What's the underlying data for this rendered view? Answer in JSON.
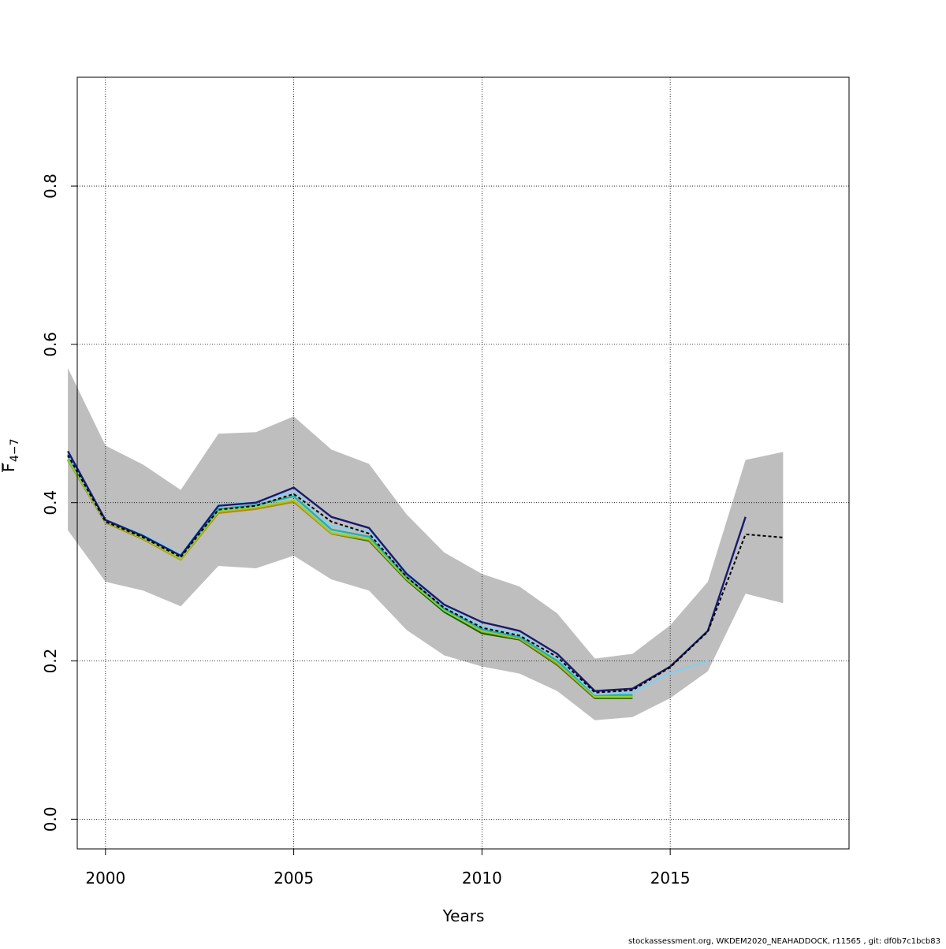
{
  "chart_data": {
    "type": "line",
    "title": "",
    "xlabel": "Years",
    "ylabel_main": "F",
    "ylabel_sub": "4−7",
    "xlim": [
      1999.25,
      2019.75
    ],
    "ylim": [
      -0.0375,
      0.9375
    ],
    "x_ticks": [
      2000,
      2005,
      2010,
      2015
    ],
    "y_ticks": [
      0.0,
      0.2,
      0.4,
      0.6,
      0.8
    ],
    "x_tick_labels": [
      "2000",
      "2005",
      "2010",
      "2015"
    ],
    "y_tick_labels": [
      "0.0",
      "0.2",
      "0.4",
      "0.6",
      "0.8"
    ],
    "grid": true,
    "confidence_band": {
      "color": "#bebebe",
      "x": [
        1999,
        2000,
        2001,
        2002,
        2003,
        2004,
        2005,
        2006,
        2007,
        2008,
        2009,
        2010,
        2011,
        2012,
        2013,
        2014,
        2015,
        2016,
        2017,
        2018
      ],
      "lower": [
        0.365,
        0.3,
        0.289,
        0.269,
        0.32,
        0.317,
        0.333,
        0.303,
        0.289,
        0.239,
        0.207,
        0.193,
        0.184,
        0.162,
        0.125,
        0.129,
        0.153,
        0.187,
        0.285,
        0.273
      ],
      "upper": [
        0.57,
        0.472,
        0.448,
        0.416,
        0.487,
        0.489,
        0.509,
        0.467,
        0.449,
        0.385,
        0.337,
        0.31,
        0.294,
        0.26,
        0.203,
        0.209,
        0.245,
        0.3,
        0.454,
        0.464
      ]
    },
    "series": [
      {
        "color": "#000000",
        "dashed": true,
        "x": [
          1999,
          2000,
          2001,
          2002,
          2003,
          2004,
          2005,
          2006,
          2007,
          2008,
          2009,
          2010,
          2011,
          2012,
          2013,
          2014,
          2015,
          2016,
          2017,
          2018
        ],
        "values": [
          0.46,
          0.376,
          0.356,
          0.331,
          0.391,
          0.396,
          0.411,
          0.376,
          0.361,
          0.306,
          0.267,
          0.242,
          0.232,
          0.205,
          0.16,
          0.163,
          0.192,
          0.237,
          0.36,
          0.356
        ]
      },
      {
        "color": "#191970",
        "dashed": false,
        "x": [
          1999,
          2000,
          2001,
          2002,
          2003,
          2004,
          2005,
          2006,
          2007,
          2008,
          2009,
          2010,
          2011,
          2012,
          2013,
          2014,
          2015,
          2016,
          2017
        ],
        "values": [
          0.465,
          0.378,
          0.358,
          0.333,
          0.396,
          0.4,
          0.419,
          0.382,
          0.368,
          0.31,
          0.271,
          0.249,
          0.238,
          0.209,
          0.162,
          0.165,
          0.193,
          0.238,
          0.382
        ]
      },
      {
        "color": "#87ceeb",
        "dashed": false,
        "x": [
          1999,
          2000,
          2001,
          2002,
          2003,
          2004,
          2005,
          2006,
          2007,
          2008,
          2009,
          2010,
          2011,
          2012,
          2013,
          2014,
          2015,
          2016
        ],
        "values": [
          0.462,
          0.377,
          0.36,
          0.335,
          0.397,
          0.401,
          0.414,
          0.37,
          0.364,
          0.312,
          0.27,
          0.244,
          0.234,
          0.204,
          0.158,
          0.16,
          0.185,
          0.2
        ]
      },
      {
        "color": "#20b2aa",
        "dashed": false,
        "x": [
          1999,
          2000,
          2001,
          2002,
          2003,
          2004,
          2005,
          2006,
          2007,
          2008,
          2009,
          2010,
          2011,
          2012,
          2013,
          2014
        ],
        "values": [
          0.459,
          0.378,
          0.359,
          0.333,
          0.392,
          0.397,
          0.408,
          0.366,
          0.357,
          0.306,
          0.266,
          0.24,
          0.23,
          0.2,
          0.157,
          0.157
        ]
      },
      {
        "color": "#9acd32",
        "dashed": false,
        "x": [
          1999,
          2000,
          2001,
          2002,
          2003,
          2004,
          2005,
          2006,
          2007,
          2008,
          2009,
          2010,
          2011,
          2012,
          2013,
          2014
        ],
        "values": [
          0.455,
          0.376,
          0.355,
          0.329,
          0.389,
          0.394,
          0.403,
          0.362,
          0.354,
          0.304,
          0.264,
          0.238,
          0.229,
          0.198,
          0.155,
          0.155
        ]
      },
      {
        "color": "#b8860b",
        "dashed": false,
        "x": [
          1999,
          2000,
          2001,
          2002,
          2003,
          2004,
          2005,
          2006,
          2007,
          2008,
          2009,
          2010,
          2011,
          2012,
          2013,
          2014
        ],
        "values": [
          0.454,
          0.375,
          0.354,
          0.328,
          0.387,
          0.392,
          0.401,
          0.361,
          0.353,
          0.303,
          0.264,
          0.237,
          0.228,
          0.196,
          0.154,
          0.154
        ]
      },
      {
        "color": "#006400",
        "dashed": false,
        "x": [
          1999,
          2000,
          2001,
          2002,
          2003,
          2004,
          2005,
          2006,
          2007,
          2008,
          2009,
          2010,
          2011,
          2012,
          2013,
          2014
        ],
        "values": [
          0.454,
          0.375,
          0.354,
          0.329,
          0.388,
          0.393,
          0.402,
          0.361,
          0.352,
          0.302,
          0.262,
          0.235,
          0.227,
          0.195,
          0.153,
          0.153
        ]
      }
    ]
  },
  "footer": "stockassessment.org, WKDEM2020_NEAHADDOCK, r11565 , git: df0b7c1bcb83"
}
